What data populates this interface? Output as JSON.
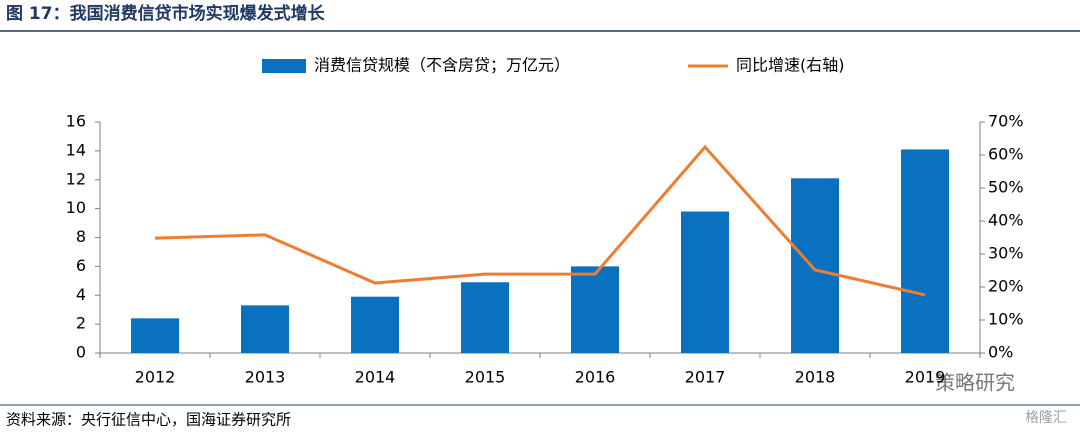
{
  "title": "图 17：我国消费信贷市场实现爆发式增长",
  "source": "资料来源：央行征信中心，国海证券研究所",
  "watermark": [
    "策略研究",
    "格隆汇"
  ],
  "chart_data": {
    "type": "bar",
    "categories": [
      "2012",
      "2013",
      "2014",
      "2015",
      "2016",
      "2017",
      "2018",
      "2019"
    ],
    "series": [
      {
        "name": "消费信贷规模（不含房贷；万亿元）",
        "type": "bar",
        "color": "#0a70c0",
        "values": [
          2.4,
          3.3,
          3.9,
          4.9,
          6.0,
          9.8,
          12.1,
          14.1
        ]
      },
      {
        "name": "同比增速(右轴)",
        "type": "line",
        "axis": "y2",
        "color": "#ed7d31",
        "values": [
          34.8,
          35.8,
          21.2,
          23.9,
          23.9,
          62.4,
          25.2,
          17.6
        ]
      }
    ],
    "ylim": [
      0,
      16
    ],
    "yticks": [
      0,
      2,
      4,
      6,
      8,
      10,
      12,
      14,
      16
    ],
    "y2lim": [
      0,
      70
    ],
    "y2ticks": [
      {
        "value": 0,
        "label": "0%"
      },
      {
        "value": 10,
        "label": "10%"
      },
      {
        "value": 20,
        "label": "20%"
      },
      {
        "value": 30,
        "label": "30%"
      },
      {
        "value": 40,
        "label": "40%"
      },
      {
        "value": 50,
        "label": "50%"
      },
      {
        "value": 60,
        "label": "60%"
      },
      {
        "value": 70,
        "label": "70%"
      }
    ],
    "grid": false,
    "legend": "top"
  }
}
